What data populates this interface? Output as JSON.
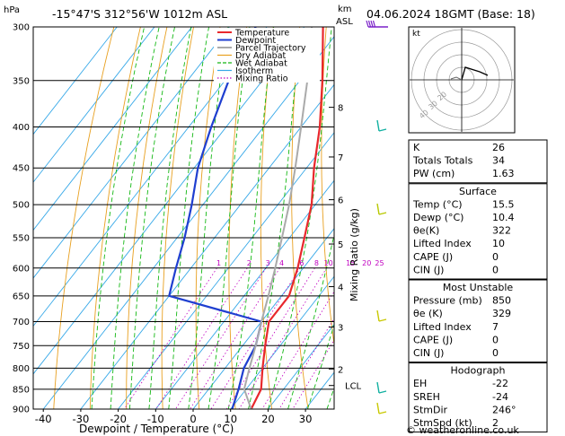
{
  "header": {
    "location": "-15°47'S  312°56'W  1012m  ASL",
    "datetime": "04.06.2024  18GMT  (Base: 18)",
    "hpa_label": "hPa",
    "km_label": "km",
    "asl_label": "ASL",
    "footer": "© weatheronline.co.uk"
  },
  "chart_data": {
    "type": "line",
    "subtype": "skew-T log-P diagram",
    "xlabel": "Dewpoint / Temperature (°C)",
    "ylabel": "hPa",
    "right_axis_label": "Mixing Ratio (g/kg)",
    "x_ticks": [
      -40,
      -30,
      -20,
      -10,
      0,
      10,
      20,
      30
    ],
    "pressure_levels": [
      300,
      350,
      400,
      450,
      500,
      550,
      600,
      650,
      700,
      750,
      800,
      850,
      900
    ],
    "xlim": [
      -42,
      38
    ],
    "ylim": [
      900,
      300
    ],
    "km_ticks": [
      {
        "label": "8",
        "p": 378
      },
      {
        "label": "7",
        "p": 436
      },
      {
        "label": "6",
        "p": 493
      },
      {
        "label": "5",
        "p": 560
      },
      {
        "label": "4",
        "p": 633
      },
      {
        "label": "3",
        "p": 711
      },
      {
        "label": "2",
        "p": 802
      },
      {
        "label": "LCL",
        "p": 841
      }
    ],
    "mixing_ratio_labels": [
      "1",
      "2",
      "3",
      "4",
      "6",
      "8",
      "10",
      "15",
      "20",
      "25"
    ],
    "mixing_ratio_values": [
      1,
      2,
      3,
      4,
      6,
      8,
      10,
      15,
      20,
      25
    ],
    "legend": [
      "Temperature",
      "Dewpoint",
      "Parcel Trajectory",
      "Dry Adiabat",
      "Wet Adiabat",
      "Isotherm",
      "Mixing Ratio"
    ],
    "legend_colors": [
      "#e8282c",
      "#1f3fd0",
      "#aaaaaa",
      "#e8a020",
      "#14b814",
      "#36a8e8",
      "#c000c0"
    ],
    "series": [
      {
        "name": "Temperature",
        "color": "#e8282c",
        "points": [
          [
            900,
            15.5
          ],
          [
            850,
            14
          ],
          [
            800,
            10
          ],
          [
            750,
            6
          ],
          [
            700,
            2
          ],
          [
            650,
            2
          ],
          [
            600,
            -1.5
          ],
          [
            550,
            -6
          ],
          [
            500,
            -11
          ],
          [
            450,
            -18
          ],
          [
            400,
            -25
          ],
          [
            350,
            -34
          ],
          [
            300,
            -45
          ]
        ]
      },
      {
        "name": "Dewpoint",
        "color": "#1f3fd0",
        "points": [
          [
            900,
            10.4
          ],
          [
            850,
            8
          ],
          [
            800,
            5
          ],
          [
            750,
            3.5
          ],
          [
            700,
            0
          ],
          [
            650,
            -30
          ],
          [
            600,
            -34
          ],
          [
            550,
            -38
          ],
          [
            500,
            -43
          ],
          [
            450,
            -49
          ],
          [
            400,
            -54
          ],
          [
            350,
            -59
          ],
          [
            300,
            -63
          ]
        ]
      },
      {
        "name": "Parcel Trajectory",
        "color": "#aaaaaa",
        "points": [
          [
            900,
            15.5
          ],
          [
            850,
            9.5
          ],
          [
            800,
            6.5
          ],
          [
            750,
            3.5
          ],
          [
            700,
            0
          ],
          [
            650,
            -3.5
          ],
          [
            600,
            -7.5
          ],
          [
            550,
            -12
          ],
          [
            500,
            -17
          ],
          [
            450,
            -23
          ],
          [
            400,
            -30
          ],
          [
            350,
            -38
          ],
          [
            300,
            -48
          ]
        ]
      }
    ]
  },
  "legend_title": "",
  "hodograph": {
    "label": "kt",
    "ring_labels": [
      "20",
      "30",
      "40"
    ]
  },
  "indices": {
    "rows": [
      {
        "label": "K",
        "value": "26"
      },
      {
        "label": "Totals Totals",
        "value": "34"
      },
      {
        "label": "PW (cm)",
        "value": "1.63"
      }
    ]
  },
  "surface": {
    "title": "Surface",
    "rows": [
      {
        "label": "Temp (°C)",
        "value": "15.5"
      },
      {
        "label": "Dewp (°C)",
        "value": "10.4"
      },
      {
        "label": "θe(K)",
        "value": "322"
      },
      {
        "label": "Lifted Index",
        "value": "10"
      },
      {
        "label": "CAPE (J)",
        "value": "0"
      },
      {
        "label": "CIN (J)",
        "value": "0"
      }
    ]
  },
  "most_unstable": {
    "title": "Most Unstable",
    "rows": [
      {
        "label": "Pressure (mb)",
        "value": "850"
      },
      {
        "label": "θe (K)",
        "value": "329"
      },
      {
        "label": "Lifted Index",
        "value": "7"
      },
      {
        "label": "CAPE (J)",
        "value": "0"
      },
      {
        "label": "CIN (J)",
        "value": "0"
      }
    ]
  },
  "hodograph_table": {
    "title": "Hodograph",
    "rows": [
      {
        "label": "EH",
        "value": "-22"
      },
      {
        "label": "SREH",
        "value": "-24"
      },
      {
        "label": "StmDir",
        "value": "246°"
      },
      {
        "label": "StmSpd (kt)",
        "value": "2"
      }
    ]
  }
}
